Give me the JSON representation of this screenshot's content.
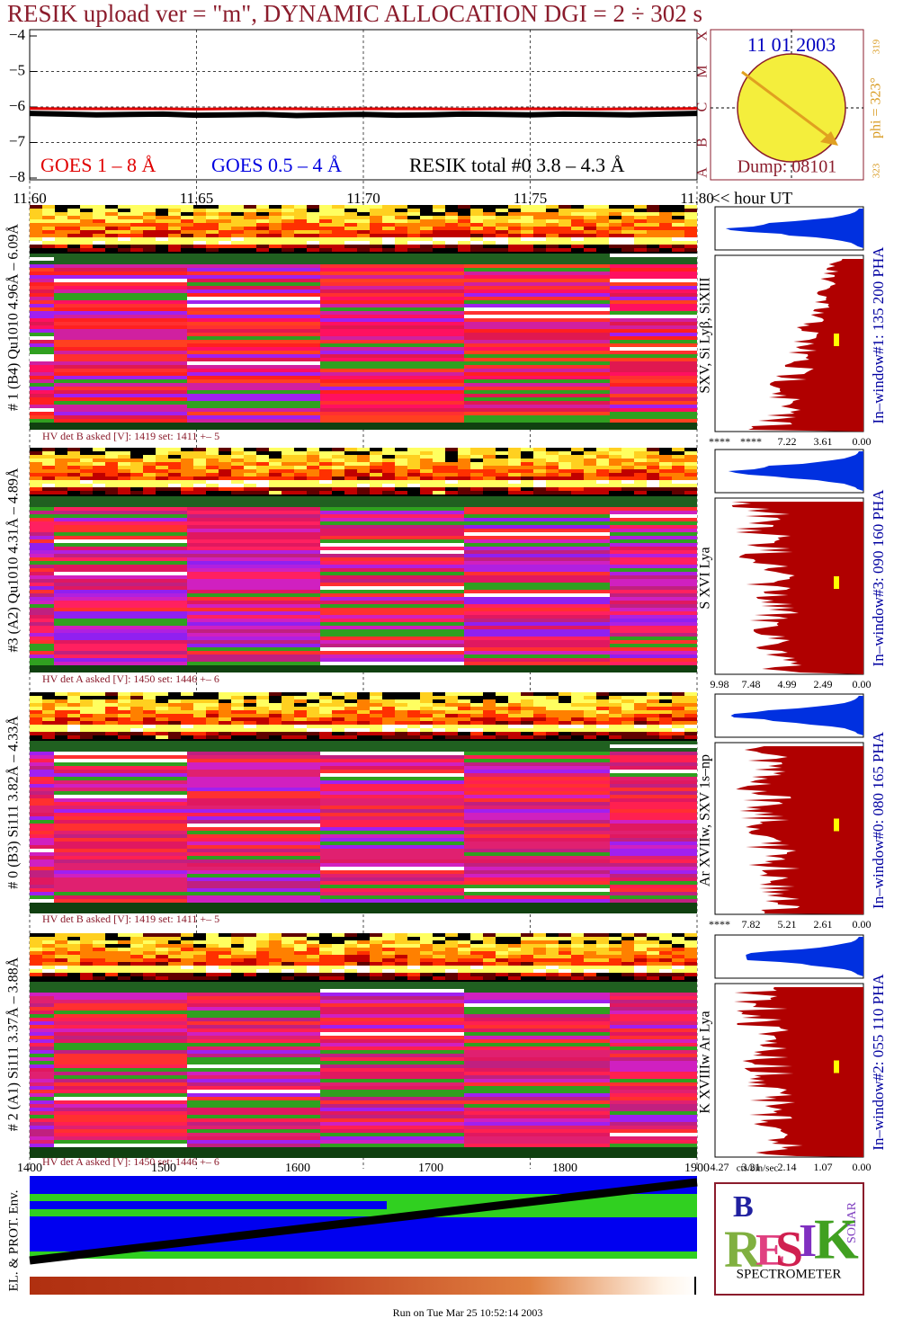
{
  "title": "RESIK upload ver = \"m\", DYNAMIC ALLOCATION  DGI =   2 ÷ 302 s",
  "chart_data": {
    "type": "line",
    "xlim": [
      11.6,
      11.8
    ],
    "xticks": [
      {
        "value": 11.6,
        "label": "11.60"
      },
      {
        "value": 11.65,
        "label": "11.65"
      },
      {
        "value": 11.7,
        "label": "11.70"
      },
      {
        "value": 11.75,
        "label": "11.75"
      },
      {
        "value": 11.8,
        "label": "11.80"
      }
    ],
    "xlabel": "<< hour UT",
    "ylim": [
      -8,
      -4
    ],
    "yticks": [
      {
        "value": -8,
        "label": "−8"
      },
      {
        "value": -7,
        "label": "−7"
      },
      {
        "value": -6,
        "label": "−6"
      },
      {
        "value": -5,
        "label": "−5"
      },
      {
        "value": -4,
        "label": "−4"
      }
    ],
    "y2lim": [
      -8,
      -4
    ],
    "y2ticks": [
      {
        "value": -8,
        "label": "A"
      },
      {
        "value": -7,
        "label": "B"
      },
      {
        "value": -6,
        "label": "C"
      },
      {
        "value": -5,
        "label": "M"
      },
      {
        "value": -4,
        "label": "X"
      }
    ],
    "grid": true,
    "x": [
      11.6,
      11.61,
      11.62,
      11.63,
      11.64,
      11.65,
      11.66,
      11.67,
      11.68,
      11.69,
      11.7,
      11.71,
      11.72,
      11.73,
      11.74,
      11.75,
      11.76,
      11.77,
      11.78,
      11.79,
      11.8
    ],
    "series": [
      {
        "name": "GOES 1 – 8 Å",
        "color": "#e00000",
        "values": [
          -6.04,
          -6.05,
          -6.05,
          -6.05,
          -6.05,
          -6.06,
          -6.05,
          -6.05,
          -6.05,
          -6.06,
          -6.05,
          -6.05,
          -6.05,
          -6.06,
          -6.05,
          -6.05,
          -6.05,
          -6.06,
          -6.05,
          -6.05,
          -6.04
        ]
      },
      {
        "name": "GOES 0.5 – 4 Å",
        "color": "#0000e0",
        "values": [
          null,
          null,
          null,
          null,
          null,
          null,
          null,
          null,
          null,
          null,
          null,
          null,
          null,
          null,
          null,
          null,
          null,
          null,
          null,
          null,
          null
        ]
      },
      {
        "name": "RESIK total #0  3.8 – 4.3 Å",
        "color": "#000000",
        "values": [
          -6.18,
          -6.2,
          -6.22,
          -6.21,
          -6.2,
          -6.23,
          -6.22,
          -6.21,
          -6.24,
          -6.22,
          -6.21,
          -6.23,
          -6.22,
          -6.2,
          -6.21,
          -6.22,
          -6.2,
          -6.21,
          -6.22,
          -6.2,
          -6.18
        ]
      }
    ]
  },
  "sun": {
    "date": "11 01 2003",
    "phi": "phi = 323°",
    "phi_small": "319",
    "phi_bottom": "323",
    "dump": "Dump: 08101"
  },
  "panels": [
    {
      "label": "# 1 (B4) Qu1010 4.96Å – 6.09Å",
      "hv": "HV det B asked [V]:  1419 set:  1411 +–    5",
      "lines": "SXV, Si Lyβ, SiXIII",
      "window": "In–window#1:  135 200 PHA",
      "axis": [
        "****",
        "****",
        "7.22",
        "3.61",
        "0.00"
      ]
    },
    {
      "label": "#3 (A2) Qu1010  4.31Å – 4.89Å",
      "hv": "HV det A asked [V]:  1450 set:  1446 +–    6",
      "lines": "S XVI Lya",
      "window": "In–window#3:  090 160 PHA",
      "axis": [
        "9.98",
        "7.48",
        "4.99",
        "2.49",
        "0.00"
      ]
    },
    {
      "label": "# 0 (B3) Si111  3.82Å – 4.33Å",
      "hv": "HV det B asked [V]:  1419 set:  1411 +–    5",
      "lines": "Ar XVIIw,  SXV 1s–np",
      "window": "In–window#0:  080 165 PHA",
      "axis": [
        "****",
        "7.82",
        "5.21",
        "2.61",
        "0.00"
      ]
    },
    {
      "label": "# 2 (A1) Si111  3.37Å – 3.88Å",
      "hv": "HV det A asked [V]:  1450 set:  1446 +–    6",
      "lines": "K XVIIIw  Ar Lya",
      "window": "In–window#2:  055 110 PHA",
      "axis": [
        "4.27",
        "3.21",
        "2.14",
        "1.07",
        "0.00"
      ]
    }
  ],
  "bottom": {
    "xticks": [
      "1400",
      "1500",
      "1600",
      "1700",
      "1800",
      "1900"
    ],
    "ylabel": "EL. & PROT. Env.",
    "units": "cts/bin/sec",
    "run": "Run on Tue Mar 25 10:52:14 2003"
  },
  "logo": {
    "b": "B",
    "r": "R",
    "e": "E",
    "s": "S",
    "i": "I",
    "k": "K",
    "solar": "SOLAR",
    "name": "SPECTROMETER"
  }
}
